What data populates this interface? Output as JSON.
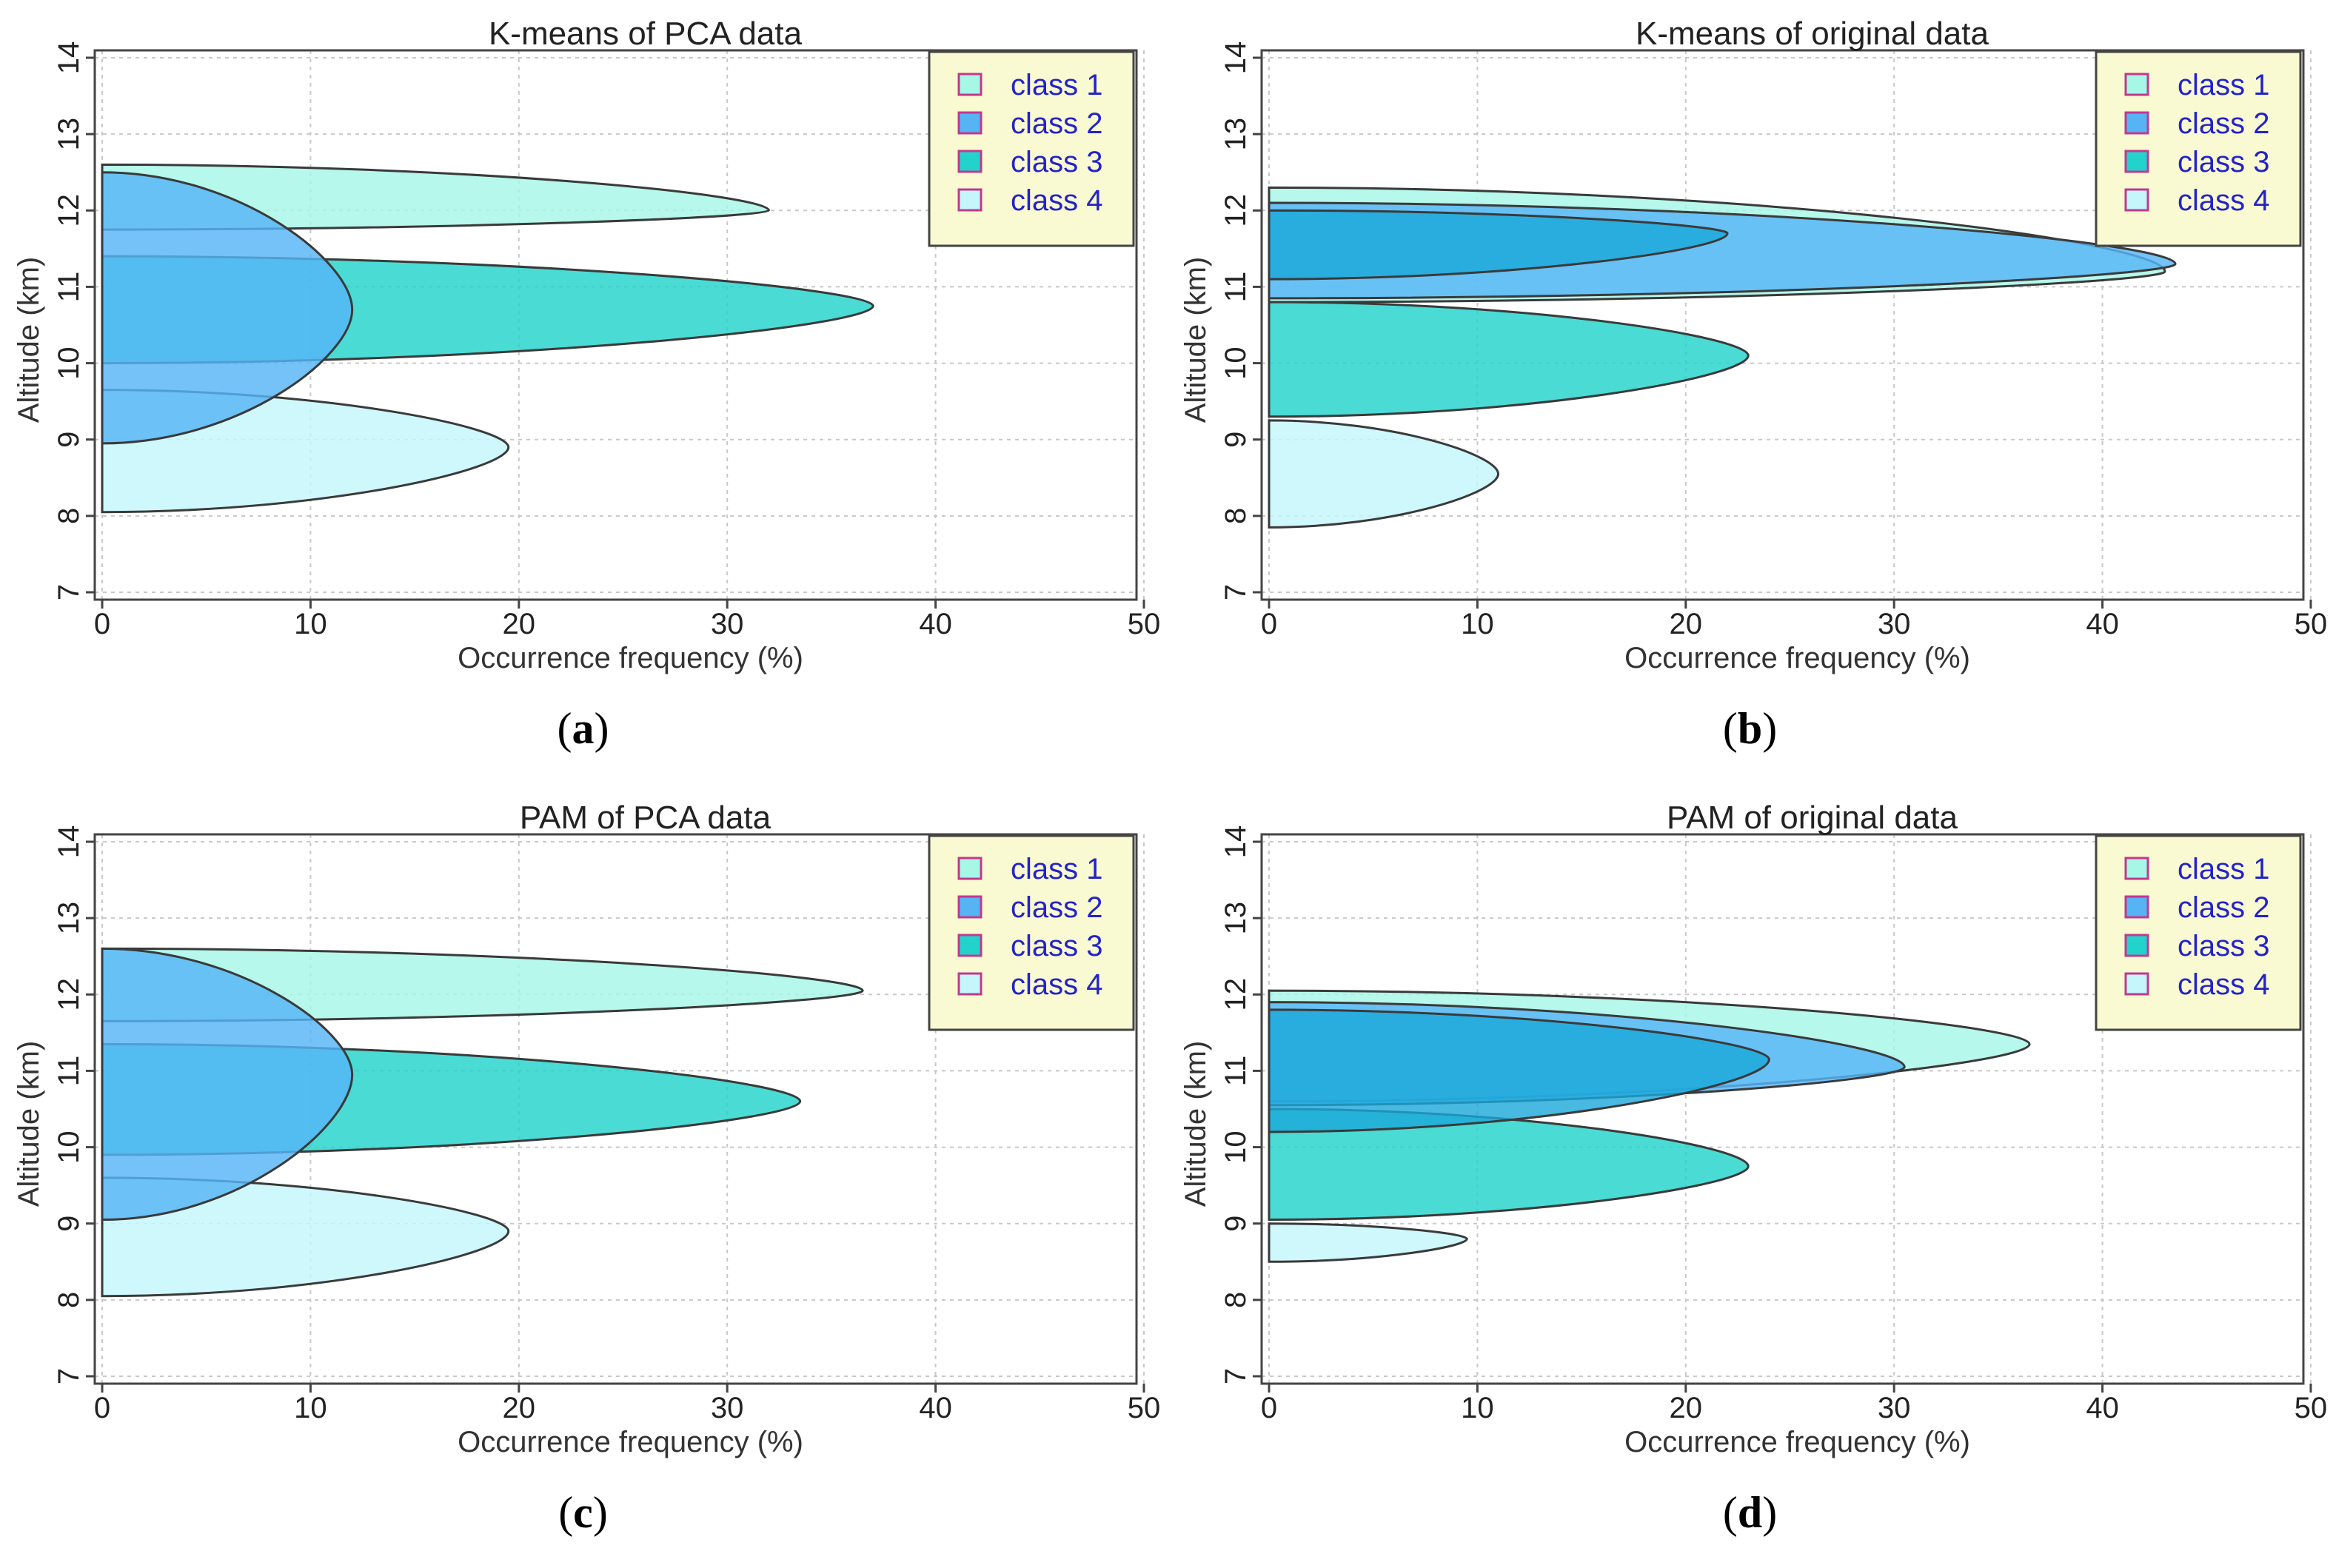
{
  "chart_data": [
    {
      "type": "area",
      "panel_label": "a",
      "title": "K-means of PCA data",
      "xlabel": "Occurrence frequency (%)",
      "ylabel": "Altitude (km)",
      "xlim": [
        0,
        50
      ],
      "ylim": [
        7,
        14
      ],
      "xticks": [
        0,
        10,
        20,
        30,
        40,
        50
      ],
      "yticks": [
        7,
        8,
        9,
        10,
        11,
        12,
        13,
        14
      ],
      "grid": true,
      "legend_position": "top-right",
      "series": [
        {
          "name": "class 1",
          "color": "#a6f7e6",
          "base_bottom": 11.75,
          "base_top": 12.6,
          "peak_altitude": 12.0,
          "peak_frequency": 32
        },
        {
          "name": "class 2",
          "color": "#56b4f5",
          "base_bottom": 8.95,
          "base_top": 12.5,
          "peak_altitude": 10.7,
          "peak_frequency": 12
        },
        {
          "name": "class 3",
          "color": "#22d3cc",
          "base_bottom": 10.0,
          "base_top": 11.4,
          "peak_altitude": 10.75,
          "peak_frequency": 37
        },
        {
          "name": "class 4",
          "color": "#c4f6fc",
          "base_bottom": 8.05,
          "base_top": 9.65,
          "peak_altitude": 8.9,
          "peak_frequency": 19.5
        }
      ]
    },
    {
      "type": "area",
      "panel_label": "b",
      "title": "K-means of original data",
      "xlabel": "Occurrence frequency (%)",
      "ylabel": "Altitude (km)",
      "xlim": [
        0,
        50
      ],
      "ylim": [
        7,
        14
      ],
      "xticks": [
        0,
        10,
        20,
        30,
        40,
        50
      ],
      "yticks": [
        7,
        8,
        9,
        10,
        11,
        12,
        13,
        14
      ],
      "grid": true,
      "legend_position": "top-right",
      "series": [
        {
          "name": "class 1",
          "color": "#a6f7e6",
          "base_bottom": 10.8,
          "base_top": 12.3,
          "peak_altitude": 11.2,
          "peak_frequency": 43
        },
        {
          "name": "class 2",
          "color": "#56b4f5",
          "base_bottom": 10.85,
          "base_top": 12.1,
          "peak_altitude": 11.3,
          "peak_frequency": 43.5
        },
        {
          "name": "class 3",
          "color": "#22d3cc",
          "base_bottom": 9.3,
          "base_top": 10.8,
          "peak_altitude": 10.1,
          "peak_frequency": 23
        },
        {
          "name": "class 4",
          "color": "#c4f6fc",
          "base_bottom": 7.85,
          "base_top": 9.25,
          "peak_altitude": 8.55,
          "peak_frequency": 11
        }
      ],
      "overlay": {
        "series": "class 3",
        "color": "#1aa8d9",
        "base_bottom": 11.1,
        "base_top": 12.0,
        "peak_altitude": 11.7,
        "peak_frequency": 22
      }
    },
    {
      "type": "area",
      "panel_label": "c",
      "title": "PAM of PCA data",
      "xlabel": "Occurrence frequency (%)",
      "ylabel": "Altitude (km)",
      "xlim": [
        0,
        50
      ],
      "ylim": [
        7,
        14
      ],
      "xticks": [
        0,
        10,
        20,
        30,
        40,
        50
      ],
      "yticks": [
        7,
        8,
        9,
        10,
        11,
        12,
        13,
        14
      ],
      "grid": true,
      "legend_position": "top-right",
      "series": [
        {
          "name": "class 1",
          "color": "#a6f7e6",
          "base_bottom": 11.65,
          "base_top": 12.6,
          "peak_altitude": 12.05,
          "peak_frequency": 36.5
        },
        {
          "name": "class 2",
          "color": "#56b4f5",
          "base_bottom": 9.05,
          "base_top": 12.6,
          "peak_altitude": 10.95,
          "peak_frequency": 12
        },
        {
          "name": "class 3",
          "color": "#22d3cc",
          "base_bottom": 9.9,
          "base_top": 11.35,
          "peak_altitude": 10.6,
          "peak_frequency": 33.5
        },
        {
          "name": "class 4",
          "color": "#c4f6fc",
          "base_bottom": 8.05,
          "base_top": 9.6,
          "peak_altitude": 8.9,
          "peak_frequency": 19.5
        }
      ]
    },
    {
      "type": "area",
      "panel_label": "d",
      "title": "PAM of original data",
      "xlabel": "Occurrence frequency (%)",
      "ylabel": "Altitude (km)",
      "xlim": [
        0,
        50
      ],
      "ylim": [
        7,
        14
      ],
      "xticks": [
        0,
        10,
        20,
        30,
        40,
        50
      ],
      "yticks": [
        7,
        8,
        9,
        10,
        11,
        12,
        13,
        14
      ],
      "grid": true,
      "legend_position": "top-right",
      "series": [
        {
          "name": "class 1",
          "color": "#a6f7e6",
          "base_bottom": 10.6,
          "base_top": 12.05,
          "peak_altitude": 11.35,
          "peak_frequency": 36.5
        },
        {
          "name": "class 2",
          "color": "#56b4f5",
          "base_bottom": 10.55,
          "base_top": 11.9,
          "peak_altitude": 11.05,
          "peak_frequency": 30.5
        },
        {
          "name": "class 3",
          "color": "#22d3cc",
          "base_bottom": 9.05,
          "base_top": 10.5,
          "peak_altitude": 9.75,
          "peak_frequency": 23
        },
        {
          "name": "class 4",
          "color": "#c4f6fc",
          "base_bottom": 8.5,
          "base_top": 9.0,
          "peak_altitude": 8.8,
          "peak_frequency": 9.5
        }
      ],
      "overlay": {
        "series": "class 2",
        "color": "#1aa8d9",
        "base_bottom": 10.2,
        "base_top": 11.8,
        "peak_altitude": 11.15,
        "peak_frequency": 24
      }
    }
  ],
  "styles": {
    "plot_border": "#444444",
    "grid_color": "#c8c8c8",
    "legend_background": "#fafad2",
    "legend_text_color": "#2323c8",
    "outline_color": "#3a3a3a"
  }
}
